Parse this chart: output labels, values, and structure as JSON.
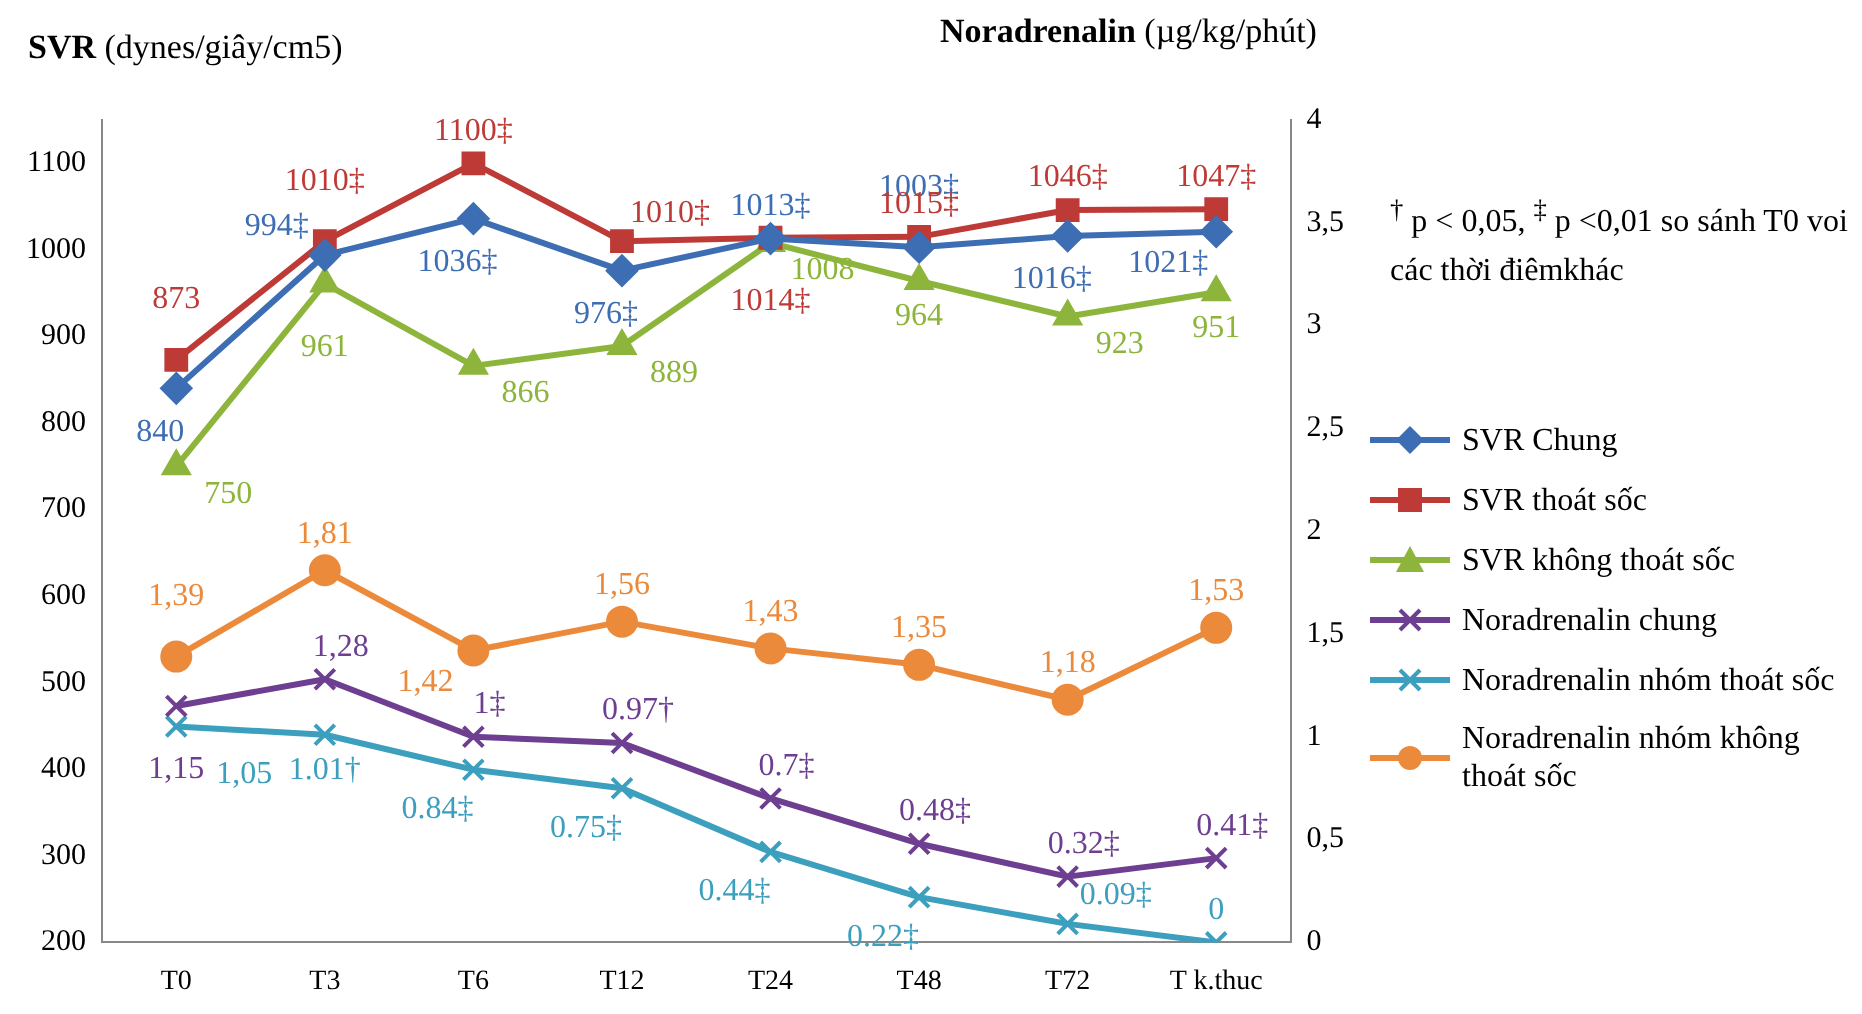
{
  "chart_data": {
    "type": "line",
    "ylabel": "SVR (dynes/giây/cm5)",
    "y2label": "Noradrenalin (µg/kg/phút)",
    "annotations": [
      "$^{†}$ p < 0,05, $^{‡}$ p <0,01 so sánh T0 voi các thời điêmkhác"
    ],
    "categories": [
      "T0",
      "T3",
      "T6",
      "T12",
      "T24",
      "T48",
      "T72",
      "T k.thuc"
    ],
    "ylim": [
      200,
      1150
    ],
    "yticks": [
      200,
      300,
      400,
      500,
      600,
      700,
      800,
      900,
      1000,
      1100
    ],
    "y2lim": [
      0,
      4
    ],
    "y2ticks": [
      0,
      {
        "value": 0.5,
        "label": "0,5"
      },
      1,
      {
        "value": 1.5,
        "label": "1,5"
      },
      2,
      {
        "value": 2.5,
        "label": "2,5"
      },
      3,
      {
        "value": 3.5,
        "label": "3,5"
      },
      4
    ],
    "grid": false,
    "legend": "right",
    "series": [
      {
        "name": "SVR Chung",
        "color": "#3d6db3",
        "marker": "diamond",
        "values": [
          840,
          994,
          1036,
          976,
          1013,
          1003,
          1016,
          1021
        ],
        "value_labels": [
          "840",
          "994‡",
          "1036‡",
          "976‡",
          "1013‡",
          "1003‡",
          "1016‡",
          "1021‡"
        ]
      },
      {
        "name": "SVR thoát sốc",
        "color": "#bd3a36",
        "marker": "square",
        "values": [
          873,
          1010,
          1100,
          1010,
          1014,
          1015,
          1046,
          1047
        ],
        "value_labels": [
          "873",
          "1010‡",
          "1100‡",
          "1010‡",
          "1014‡",
          "1015‡",
          "1046‡",
          "1047‡"
        ]
      },
      {
        "name": "SVR không thoát sốc",
        "color": "#8db53c",
        "marker": "triangle",
        "values": [
          750,
          961,
          866,
          889,
          1008,
          964,
          923,
          951
        ],
        "value_labels": [
          "750",
          "961",
          "866",
          "889",
          "1008",
          "964",
          "923",
          "951"
        ]
      },
      {
        "name": "Noradrenalin chung",
        "color": "#6e3f91",
        "marker": "cross",
        "axis": "y2",
        "values": [
          1.15,
          1.28,
          1,
          0.97,
          0.7,
          0.48,
          0.32,
          0.41
        ],
        "value_labels": [
          "1,15",
          "1,28",
          "1‡",
          "0.97†",
          "0.7‡",
          "0.48‡",
          "0.32‡",
          "0.41‡"
        ]
      },
      {
        "name": "Noradrenalin nhóm thoát sốc",
        "color": "#3b9fbd",
        "marker": "cross",
        "axis": "y2",
        "values": [
          1.05,
          1.01,
          0.84,
          0.75,
          0.44,
          0.22,
          0.09,
          0
        ],
        "value_labels": [
          "1,05",
          "1.01†",
          "0.84‡",
          "0.75‡",
          "0.44‡",
          "0.22‡",
          "0.09‡",
          "0"
        ]
      },
      {
        "name": "Noradrenalin nhóm không thoát sốc",
        "color": "#ec8a3c",
        "marker": "circle",
        "axis": "y2",
        "values": [
          1.39,
          1.81,
          1.42,
          1.56,
          1.43,
          1.35,
          1.18,
          1.53
        ],
        "value_labels": [
          "1,39",
          "1,81",
          "1,42",
          "1,56",
          "1,43",
          "1,35",
          "1,18",
          "1,53"
        ]
      }
    ]
  }
}
